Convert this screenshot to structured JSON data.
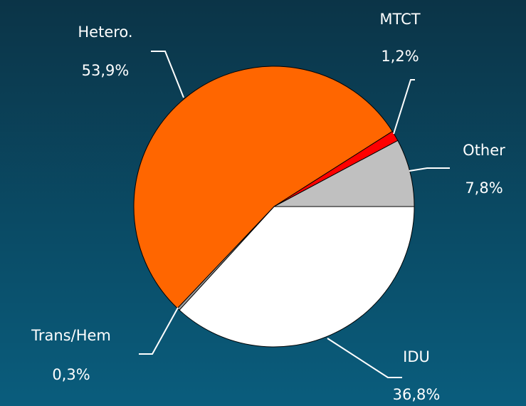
{
  "chart_data": {
    "type": "pie",
    "categories": [
      "IDU",
      "Trans/Hem",
      "Hetero.",
      "MTCT",
      "Other"
    ],
    "values": [
      36.8,
      0.3,
      53.9,
      1.2,
      7.8
    ],
    "value_labels": [
      "36,8%",
      "0,3%",
      "53,9%",
      "1,2%",
      "7,8%"
    ],
    "colors": [
      "#ffffff",
      "#9a9a9a",
      "#ff6600",
      "#ff0000",
      "#c0c0c0"
    ]
  }
}
